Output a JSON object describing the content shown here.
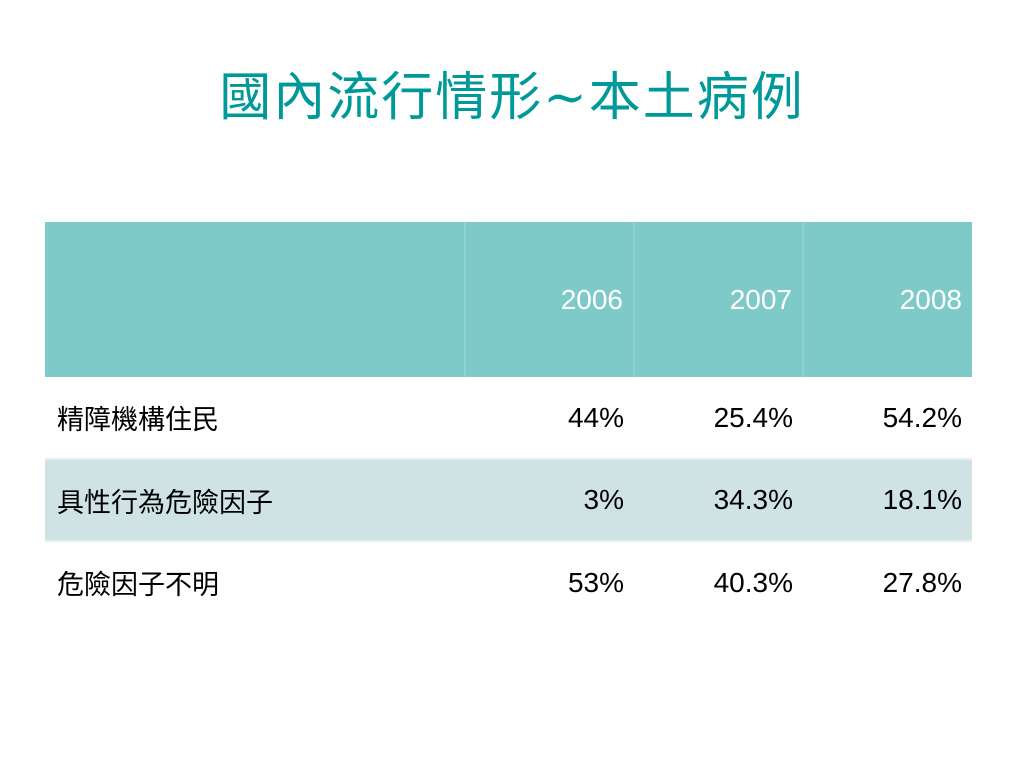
{
  "title": "國內流行情形~本土病例",
  "table": {
    "header": [
      "",
      "2006",
      "2007",
      "2008"
    ],
    "rows": [
      {
        "label": "精障機構住民",
        "values": [
          "44%",
          "25.4%",
          "54.2%"
        ]
      },
      {
        "label": "具性行為危險因子",
        "values": [
          "3%",
          "34.3%",
          "18.1%"
        ]
      },
      {
        "label": "危險因子不明",
        "values": [
          "53%",
          "40.3%",
          "27.8%"
        ]
      }
    ]
  },
  "colors": {
    "title": "#009999",
    "header_bg": "#7ecac9",
    "header_text": "#ffffff",
    "row_alt_bg": "#cfe3e5"
  }
}
